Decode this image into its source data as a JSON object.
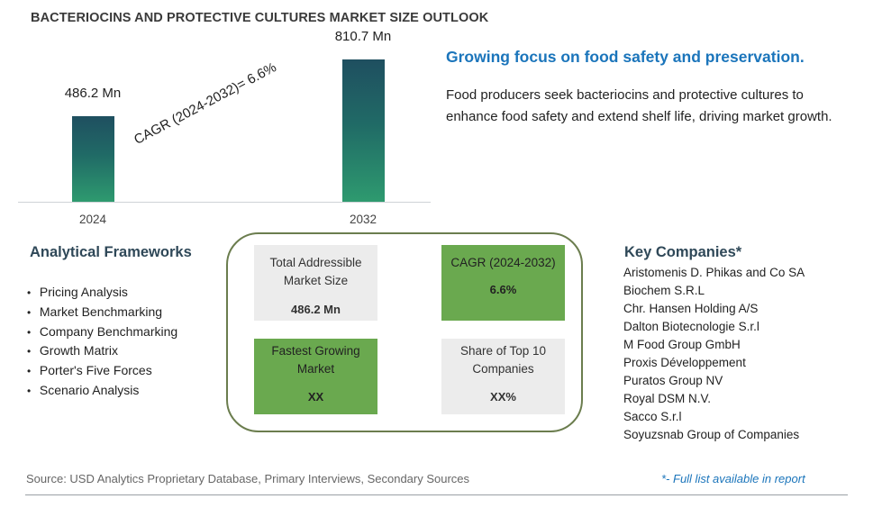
{
  "title": "BACTERIOCINS AND PROTECTIVE CULTURES MARKET SIZE OUTLOOK",
  "chart_data": {
    "type": "bar",
    "categories": [
      "2024",
      "2032"
    ],
    "values": [
      486.2,
      810.7
    ],
    "value_labels": [
      "486.2 Mn",
      "810.7 Mn"
    ],
    "annotation": "CAGR (2024-2032)=  6.6%",
    "ylim": [
      0,
      810.7
    ],
    "grid": false
  },
  "headline": "Growing focus on food safety and preservation.",
  "description": "Food producers seek bacteriocins and protective cultures to enhance food safety and extend shelf life, driving market growth.",
  "frameworks": {
    "title": "Analytical Frameworks",
    "items": [
      "Pricing Analysis",
      "Market Benchmarking",
      "Company Benchmarking",
      "Growth Matrix",
      "Porter's Five Forces",
      "Scenario Analysis"
    ]
  },
  "metrics": {
    "tam": {
      "label": "Total Addressible Market Size",
      "value": "486.2 Mn"
    },
    "cagr": {
      "label": "CAGR (2024-2032)",
      "value": "6.6%"
    },
    "fastest": {
      "label": "Fastest Growing Market",
      "value": "XX"
    },
    "share": {
      "label": "Share of Top 10 Companies",
      "value": "XX%"
    }
  },
  "companies": {
    "title": "Key Companies*",
    "items": [
      "Aristomenis D. Phikas and Co SA",
      "Biochem S.R.L",
      "Chr. Hansen Holding A/S",
      "Dalton Biotecnologie S.r.l",
      "M Food Group GmbH",
      "Proxis Développement",
      "Puratos Group NV",
      "Royal DSM N.V.",
      "Sacco S.r.l",
      "Soyuzsnab Group of Companies"
    ]
  },
  "source": "Source: USD Analytics Proprietary Database, Primary Interviews, Secondary Sources",
  "note": "*- Full list available in report",
  "colors": {
    "accent_blue": "#1b75bb",
    "metric_green": "#6aa94f",
    "metric_grey": "#ececec",
    "bar_top": "#1f4f60",
    "bar_bottom": "#2e9a6f"
  }
}
